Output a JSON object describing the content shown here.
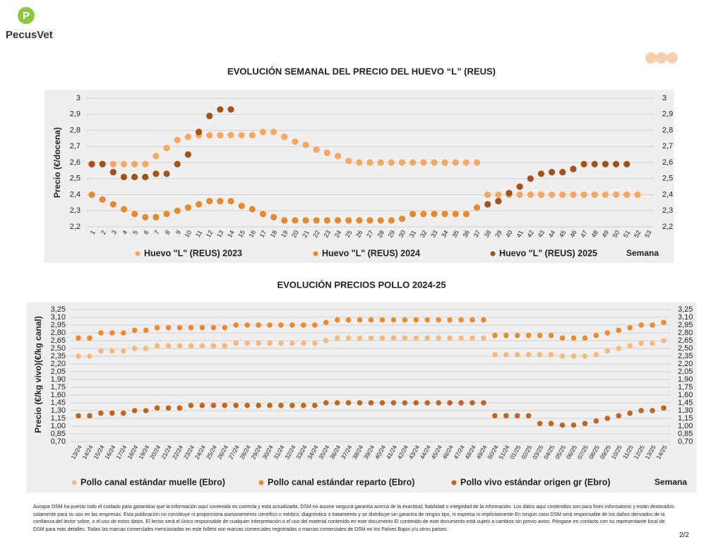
{
  "header": {
    "brand": "PecusVet"
  },
  "chart_data": [
    {
      "type": "dot",
      "title": "EVOLUCIÓN SEMANAL DEL PRECIO DEL HUEVO “L” (REUS)",
      "y_label": "Precio (€/docena)",
      "x_label": "Semana",
      "categories": [
        "1",
        "2",
        "3",
        "4",
        "5",
        "6",
        "7",
        "8",
        "9",
        "10",
        "11",
        "12",
        "13",
        "14",
        "15",
        "16",
        "17",
        "18",
        "19",
        "20",
        "21",
        "22",
        "23",
        "24",
        "25",
        "26",
        "27",
        "28",
        "29",
        "30",
        "31",
        "32",
        "33",
        "34",
        "35",
        "36",
        "37",
        "38",
        "39",
        "40",
        "41",
        "42",
        "43",
        "44",
        "45",
        "46",
        "47",
        "48",
        "49",
        "50",
        "51",
        "52",
        "53"
      ],
      "series": [
        {
          "name": "Huevo \"L\" (REUS) 2023",
          "color": "#f5a862",
          "values": [
            2.59,
            2.59,
            2.59,
            2.59,
            2.59,
            2.59,
            2.64,
            2.69,
            2.74,
            2.76,
            2.77,
            2.77,
            2.77,
            2.77,
            2.77,
            2.77,
            2.79,
            2.79,
            2.76,
            2.73,
            2.71,
            2.68,
            2.66,
            2.64,
            2.61,
            2.6,
            2.6,
            2.6,
            2.6,
            2.6,
            2.6,
            2.6,
            2.6,
            2.6,
            2.6,
            2.6,
            2.6,
            2.4,
            2.4,
            2.4,
            2.4,
            2.4,
            2.4,
            2.4,
            2.4,
            2.4,
            2.4,
            2.4,
            2.4,
            2.4,
            2.4,
            2.4,
            null
          ]
        },
        {
          "name": "Huevo \"L\" (REUS) 2024",
          "color": "#e68a2e",
          "values": [
            2.4,
            2.37,
            2.34,
            2.31,
            2.28,
            2.26,
            2.26,
            2.28,
            2.3,
            2.32,
            2.34,
            2.36,
            2.36,
            2.36,
            2.33,
            2.31,
            2.28,
            2.26,
            2.24,
            2.24,
            2.24,
            2.24,
            2.24,
            2.24,
            2.24,
            2.24,
            2.24,
            2.24,
            2.24,
            2.25,
            2.28,
            2.28,
            2.28,
            2.28,
            2.28,
            2.28,
            2.32,
            null,
            null,
            null,
            null,
            null,
            null,
            null,
            null,
            null,
            null,
            null,
            null,
            null,
            null,
            null,
            null
          ]
        },
        {
          "name": "Huevo \"L\" (REUS) 2025",
          "color": "#a3521c",
          "values": [
            2.59,
            2.59,
            2.54,
            2.51,
            2.51,
            2.51,
            2.53,
            2.53,
            2.59,
            2.65,
            2.79,
            2.89,
            2.93,
            2.93,
            null,
            null,
            null,
            null,
            null,
            null,
            null,
            null,
            null,
            null,
            null,
            null,
            null,
            null,
            null,
            null,
            null,
            null,
            null,
            null,
            null,
            null,
            null,
            2.34,
            2.36,
            2.41,
            2.45,
            2.5,
            2.53,
            2.54,
            2.54,
            2.56,
            2.59,
            2.59,
            2.59,
            2.59,
            2.59,
            null,
            null
          ]
        }
      ],
      "ylim": [
        2.2,
        3
      ],
      "yticks": [
        {
          "value": 2.2,
          "label": "2,2"
        },
        {
          "value": 2.3,
          "label": "2,3"
        },
        {
          "value": 2.4,
          "label": "2,4"
        },
        {
          "value": 2.5,
          "label": "2,5"
        },
        {
          "value": 2.6,
          "label": "2,6"
        },
        {
          "value": 2.7,
          "label": "2,7"
        },
        {
          "value": 2.8,
          "label": "2,8"
        },
        {
          "value": 2.9,
          "label": "2,9"
        },
        3
      ],
      "grid": true,
      "mirror_y_axis": true,
      "legend": "bottom"
    },
    {
      "type": "dot",
      "title": "EVOLUCIÓN PRECIOS POLLO 2024-25",
      "y_label": "Precio (€/kg vivo)(€/kg canal)",
      "x_label": "Semana",
      "categories": [
        "13/24",
        "14/24",
        "15/24",
        "16/24",
        "17/24",
        "18/24",
        "19/24",
        "20/24",
        "21/24",
        "22/24",
        "23/24",
        "24/24",
        "25/24",
        "26/24",
        "27/24",
        "28/24",
        "29/24",
        "30/24",
        "31/24",
        "32/24",
        "33/24",
        "34/24",
        "35/24",
        "36/24",
        "37/24",
        "38/24",
        "39/24",
        "40/24",
        "41/24",
        "42/24",
        "43/24",
        "44/24",
        "45/24",
        "46/24",
        "47/24",
        "48/24",
        "49/24",
        "50/24",
        "51/24",
        "01/25",
        "02/25",
        "03/25",
        "04/25",
        "05/25",
        "06/25",
        "07/25",
        "08/25",
        "09/25",
        "10/25",
        "11/25",
        "12/25",
        "13/25",
        "14/25"
      ],
      "series": [
        {
          "name": "Pollo canal estándar muelle (Ebro)",
          "color": "#f8b87a",
          "values": [
            2.35,
            2.35,
            2.45,
            2.45,
            2.45,
            2.5,
            2.5,
            2.55,
            2.55,
            2.55,
            2.55,
            2.55,
            2.55,
            2.55,
            2.6,
            2.6,
            2.6,
            2.6,
            2.6,
            2.6,
            2.6,
            2.6,
            2.65,
            2.7,
            2.7,
            2.7,
            2.7,
            2.7,
            2.7,
            2.7,
            2.7,
            2.7,
            2.7,
            2.7,
            2.7,
            2.7,
            2.7,
            2.38,
            2.38,
            2.38,
            2.38,
            2.38,
            2.38,
            2.35,
            2.35,
            2.35,
            2.38,
            2.45,
            2.5,
            2.55,
            2.6,
            2.6,
            2.65
          ]
        },
        {
          "name": "Pollo canal estándar reparto (Ebro)",
          "color": "#ec8a2c",
          "values": [
            2.7,
            2.7,
            2.8,
            2.8,
            2.8,
            2.85,
            2.85,
            2.9,
            2.9,
            2.9,
            2.9,
            2.9,
            2.9,
            2.9,
            2.95,
            2.95,
            2.95,
            2.95,
            2.95,
            2.95,
            2.95,
            2.95,
            3.0,
            3.05,
            3.05,
            3.05,
            3.05,
            3.05,
            3.05,
            3.05,
            3.05,
            3.05,
            3.05,
            3.05,
            3.05,
            3.05,
            3.05,
            2.75,
            2.75,
            2.75,
            2.75,
            2.75,
            2.75,
            2.7,
            2.7,
            2.7,
            2.75,
            2.8,
            2.85,
            2.9,
            2.95,
            2.95,
            3.0
          ]
        },
        {
          "name": "Pollo vivo estándar origen gr (Ebro)",
          "color": "#c0661d",
          "values": [
            1.2,
            1.2,
            1.25,
            1.25,
            1.25,
            1.3,
            1.3,
            1.35,
            1.35,
            1.35,
            1.4,
            1.4,
            1.4,
            1.4,
            1.4,
            1.4,
            1.4,
            1.4,
            1.4,
            1.4,
            1.4,
            1.4,
            1.45,
            1.45,
            1.45,
            1.45,
            1.45,
            1.45,
            1.45,
            1.45,
            1.45,
            1.45,
            1.45,
            1.45,
            1.45,
            1.45,
            1.45,
            1.2,
            1.2,
            1.2,
            1.2,
            1.05,
            1.05,
            1.02,
            1.02,
            1.05,
            1.1,
            1.15,
            1.2,
            1.25,
            1.3,
            1.3,
            1.35
          ]
        }
      ],
      "ylim": [
        0.7,
        3.25
      ],
      "yticks": [
        {
          "value": 0.7,
          "label": "0,70"
        },
        {
          "value": 0.85,
          "label": "0,85"
        },
        {
          "value": 1,
          "label": "1,00"
        },
        {
          "value": 1.15,
          "label": "1,15"
        },
        {
          "value": 1.3,
          "label": "1,30"
        },
        {
          "value": 1.45,
          "label": "1,45"
        },
        {
          "value": 1.6,
          "label": "1,60"
        },
        {
          "value": 1.75,
          "label": "1,75"
        },
        {
          "value": 1.9,
          "label": "1,90"
        },
        {
          "value": 2.05,
          "label": "2,05"
        },
        {
          "value": 2.2,
          "label": "2,20"
        },
        {
          "value": 2.35,
          "label": "2,35"
        },
        {
          "value": 2.5,
          "label": "2,50"
        },
        {
          "value": 2.65,
          "label": "2,65"
        },
        {
          "value": 2.8,
          "label": "2,80"
        },
        {
          "value": 2.95,
          "label": "2,95"
        },
        {
          "value": 3.1,
          "label": "3,10"
        },
        {
          "value": 3.25,
          "label": "3,25"
        }
      ],
      "grid": true,
      "mirror_y_axis": true,
      "legend": "bottom"
    }
  ],
  "footer": {
    "disclaimer": "Aunque DSM ha puesto todo el cuidado para garantizar que la información aquí contenida es correcta y está actualizada, DSM no asume ninguna garantía acerca de la exactitud, fiabilidad o integridad de la información. Los datos aquí contenidos son para fines informativos y están destinados solamente para su uso en las empresas. Esta publicación no constituye ni proporciona asesoramiento científico o médico, diagnóstico o tratamiento y se distribuye sin garantía de ningún tipo, ni expresa ni implícitamente En ningún caso DSM será responsable de los daños derivados de la confianza del lector sobre, o el uso de estos datos. El lector será el único responsable de cualquier interpretación o el uso del material contenido en este documento El contenido de este documento está sujeto a cambios sin previo aviso. Póngase en contacto con su representante local de DSM para más detalles. Todas las marcas comerciales mencionadas en este folleto son marcas comerciales registradas o marcas comerciales de DSM en los Países Bajos y/u otros países.",
    "page": "2/2"
  }
}
